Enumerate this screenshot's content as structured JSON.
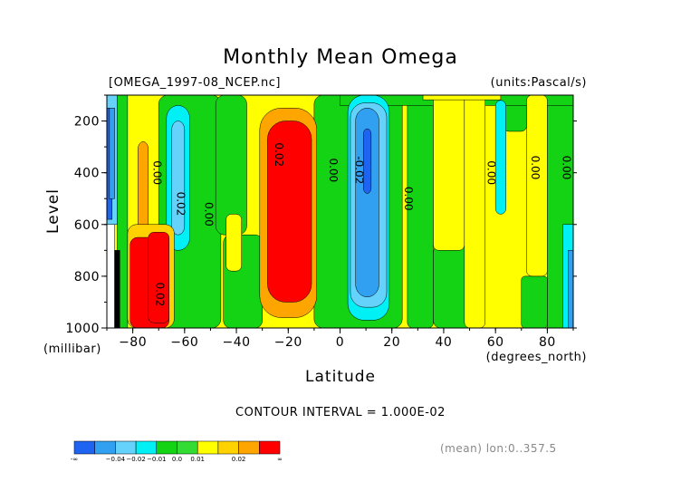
{
  "chart_data": {
    "type": "heatmap",
    "title": "Monthly Mean Omega",
    "file_label": "[OMEGA_1997-08_NCEP.nc]",
    "units_label": "(units:Pascal/s)",
    "xlabel": "Latitude",
    "x_unit_label": "(degrees_north)",
    "ylabel": "Level",
    "y_unit_label": "(millibar)",
    "xlim": [
      -90,
      90
    ],
    "ylim": [
      1000,
      100
    ],
    "x_ticks": [
      -80,
      -60,
      -40,
      -20,
      0,
      20,
      40,
      60,
      80
    ],
    "y_ticks": [
      200,
      400,
      600,
      800,
      1000
    ],
    "contour_interval_text": "CONTOUR INTERVAL = 1.000E-02",
    "mean_note": "(mean) lon:0..357.5",
    "contour_labels": [
      {
        "text": "0.00",
        "lat": -72,
        "level": 400
      },
      {
        "text": "0.02",
        "lat": -63,
        "level": 520
      },
      {
        "text": "0.00",
        "lat": -52,
        "level": 560
      },
      {
        "text": "0.02",
        "lat": -25,
        "level": 330
      },
      {
        "text": "0.00",
        "lat": -4,
        "level": 390
      },
      {
        "text": "-0.02",
        "lat": 6,
        "level": 390
      },
      {
        "text": "0.00",
        "lat": 25,
        "level": 500
      },
      {
        "text": "0.00",
        "lat": 57,
        "level": 400
      },
      {
        "text": "0.00",
        "lat": 74,
        "level": 380
      },
      {
        "text": "0.00",
        "lat": 86,
        "level": 380
      },
      {
        "text": "0.02",
        "lat": -71,
        "level": 870
      }
    ],
    "colorbar": {
      "colors": [
        "#1e64f0",
        "#32a0f0",
        "#64d2fa",
        "#00f0f5",
        "#14d214",
        "#32dc32",
        "#ffff00",
        "#ffd200",
        "#ffa500",
        "#ff0000"
      ],
      "labels": [
        "-∞",
        "−0.04",
        "−0.02",
        "−0.01",
        "0.0",
        "0.01",
        "0.02",
        "∞"
      ]
    }
  }
}
